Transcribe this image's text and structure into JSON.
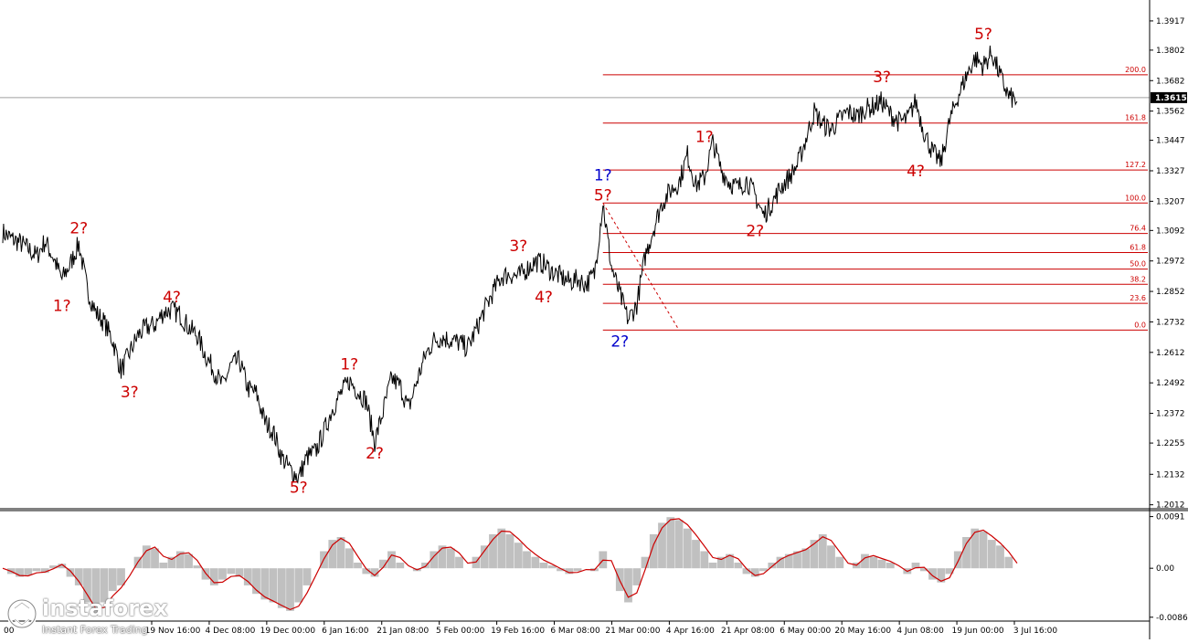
{
  "chart_data": [
    {
      "type": "line",
      "panel": "price",
      "y_ticks": [
        "1.3917",
        "1.3802",
        "1.3682",
        "1.3562",
        "1.3447",
        "1.3327",
        "1.3207",
        "1.3092",
        "1.2972",
        "1.2852",
        "1.2732",
        "1.2612",
        "1.2492",
        "1.2372",
        "1.2255",
        "1.2132",
        "1.2012"
      ],
      "ylim": [
        1.2,
        1.3985
      ],
      "current_price": "1.3615",
      "x_ticks": [
        "19 Nov 16:00",
        "4 Dec 08:00",
        "19 Dec 00:00",
        "6 Jan 16:00",
        "21 Jan 08:00",
        "5 Feb 00:00",
        "19 Feb 16:00",
        "6 Mar 08:00",
        "21 Mar 00:00",
        "4 Apr 16:00",
        "21 Apr 08:00",
        "6 May 00:00",
        "20 May 16:00",
        "4 Jun 08:00",
        "19 Jun 00:00",
        "3 Jul 16:00"
      ],
      "x_tick_first_fragment": "00",
      "series": [
        {
          "values": [
            1.3085,
            1.306,
            1.3045,
            1.302,
            1.299,
            1.305,
            1.2985,
            1.29,
            1.296,
            1.304,
            1.286,
            1.277,
            1.273,
            1.266,
            1.254,
            1.261,
            1.268,
            1.271,
            1.272,
            1.277,
            1.278,
            1.276,
            1.271,
            1.268,
            1.26,
            1.254,
            1.248,
            1.256,
            1.258,
            1.247,
            1.245,
            1.234,
            1.23,
            1.22,
            1.215,
            1.212,
            1.22,
            1.222,
            1.23,
            1.239,
            1.245,
            1.25,
            1.246,
            1.242,
            1.226,
            1.238,
            1.251,
            1.248,
            1.239,
            1.25,
            1.26,
            1.266,
            1.267,
            1.266,
            1.265,
            1.263,
            1.27,
            1.278,
            1.285,
            1.291,
            1.292,
            1.291,
            1.294,
            1.297,
            1.296,
            1.293,
            1.291,
            1.289,
            1.29,
            1.288,
            1.292,
            1.32,
            1.295,
            1.284,
            1.274,
            1.28,
            1.299,
            1.31,
            1.32,
            1.325,
            1.328,
            1.339,
            1.327,
            1.33,
            1.344,
            1.333,
            1.328,
            1.326,
            1.329,
            1.323,
            1.315,
            1.32,
            1.326,
            1.33,
            1.335,
            1.345,
            1.356,
            1.351,
            1.349,
            1.353,
            1.356,
            1.354,
            1.357,
            1.358,
            1.36,
            1.355,
            1.352,
            1.353,
            1.36,
            1.348,
            1.34,
            1.336,
            1.352,
            1.362,
            1.37,
            1.377,
            1.374,
            1.379,
            1.37,
            1.362,
            1.36
          ]
        }
      ],
      "fibonacci": {
        "levels": [
          {
            "label": "200.0",
            "price": 1.3705
          },
          {
            "label": "161.8",
            "price": 1.3515
          },
          {
            "label": "127.2",
            "price": 1.333
          },
          {
            "label": "100.0",
            "price": 1.32
          },
          {
            "label": "76.4",
            "price": 1.308
          },
          {
            "label": "61.8",
            "price": 1.3005
          },
          {
            "label": "50.0",
            "price": 1.294
          },
          {
            "label": "38.2",
            "price": 1.288
          },
          {
            "label": "23.6",
            "price": 1.2805
          },
          {
            "label": "0.0",
            "price": 1.27
          }
        ],
        "color": "#cc0000"
      },
      "wave_labels": [
        {
          "text": "1?",
          "color": "#cc0000",
          "idx": 7,
          "price": 1.2775
        },
        {
          "text": "2?",
          "color": "#cc0000",
          "idx": 9,
          "price": 1.308
        },
        {
          "text": "3?",
          "color": "#cc0000",
          "idx": 15,
          "price": 1.2435
        },
        {
          "text": "4?",
          "color": "#cc0000",
          "idx": 20,
          "price": 1.281
        },
        {
          "text": "5?",
          "color": "#cc0000",
          "idx": 35,
          "price": 1.206
        },
        {
          "text": "1?",
          "color": "#cc0000",
          "idx": 41,
          "price": 1.2545
        },
        {
          "text": "2?",
          "color": "#cc0000",
          "idx": 44,
          "price": 1.2195
        },
        {
          "text": "3?",
          "color": "#cc0000",
          "idx": 61,
          "price": 1.301
        },
        {
          "text": "4?",
          "color": "#cc0000",
          "idx": 64,
          "price": 1.281
        },
        {
          "text": "1?",
          "color": "#0000cc",
          "idx": 71,
          "price": 1.329
        },
        {
          "text": "5?",
          "color": "#cc0000",
          "idx": 71,
          "price": 1.321
        },
        {
          "text": "2?",
          "color": "#0000cc",
          "idx": 73,
          "price": 1.2635
        },
        {
          "text": "1?",
          "color": "#cc0000",
          "idx": 83,
          "price": 1.344
        },
        {
          "text": "2?",
          "color": "#cc0000",
          "idx": 89,
          "price": 1.307
        },
        {
          "text": "3?",
          "color": "#cc0000",
          "idx": 104,
          "price": 1.3675
        },
        {
          "text": "4?",
          "color": "#cc0000",
          "idx": 108,
          "price": 1.3305
        },
        {
          "text": "5?",
          "color": "#cc0000",
          "idx": 116,
          "price": 1.3845
        }
      ]
    },
    {
      "type": "area",
      "panel": "oscillator",
      "y_ticks": [
        "0.0091",
        "0.00",
        "-0.00862"
      ],
      "ylim": [
        -0.0093,
        0.01
      ],
      "values": [
        0.0,
        -0.001,
        -0.0015,
        -0.0012,
        -0.0005,
        -0.0008,
        0.0005,
        0.0008,
        -0.0015,
        -0.003,
        -0.006,
        -0.008,
        -0.006,
        -0.004,
        -0.003,
        0.0,
        0.002,
        0.004,
        0.0035,
        0.001,
        0.002,
        0.003,
        0.0025,
        0.0005,
        -0.002,
        -0.003,
        -0.002,
        -0.001,
        -0.0015,
        -0.003,
        -0.0045,
        -0.0055,
        -0.006,
        -0.007,
        -0.0075,
        -0.006,
        -0.003,
        0.0,
        0.003,
        0.005,
        0.0055,
        0.0035,
        0.001,
        -0.001,
        -0.0015,
        0.0015,
        0.003,
        0.001,
        0.0,
        -0.0005,
        0.001,
        0.003,
        0.004,
        0.0035,
        0.002,
        0.0,
        0.002,
        0.004,
        0.006,
        0.007,
        0.006,
        0.0045,
        0.003,
        0.002,
        0.001,
        0.0005,
        -0.0005,
        -0.001,
        -0.0005,
        0.0,
        -0.0005,
        0.003,
        0.0,
        -0.004,
        -0.006,
        -0.003,
        0.002,
        0.006,
        0.008,
        0.009,
        0.0085,
        0.007,
        0.005,
        0.003,
        0.001,
        0.002,
        0.0025,
        0.001,
        -0.001,
        -0.0015,
        -0.0005,
        0.001,
        0.002,
        0.0025,
        0.003,
        0.0035,
        0.005,
        0.006,
        0.004,
        0.002,
        0.0,
        0.001,
        0.0025,
        0.002,
        0.0015,
        0.001,
        0.0,
        -0.001,
        0.001,
        -0.0005,
        -0.002,
        -0.0025,
        -0.001,
        0.003,
        0.0055,
        0.007,
        0.0065,
        0.005,
        0.004,
        0.002,
        0.0
      ],
      "fill_color": "#c0c0c0",
      "signal_color": "#cc0000"
    }
  ],
  "watermark": {
    "name": "instaforex",
    "tagline": "Instant Forex Trading"
  }
}
